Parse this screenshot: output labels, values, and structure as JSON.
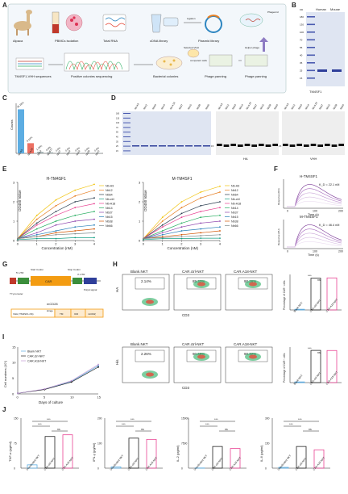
{
  "panels": {
    "A": "A",
    "B": "B",
    "C": "C",
    "D": "D",
    "E": "E",
    "F": "F",
    "G": "G",
    "H": "H",
    "I": "I",
    "J": "J"
  },
  "workflow": {
    "steps_top": [
      "Alpaca",
      "PBMCs isolation",
      "Total RNA",
      "cDNA library",
      "Plasmid library"
    ],
    "steps_bottom": [
      "TM4SF1-VHH sequences",
      "Positive colonies sequencing",
      "Bacterial colonies",
      "Phage panning",
      "Phage panning"
    ],
    "ligation": "Ligation",
    "phagemid": "Phagemid",
    "helper_phage": "Helper phage",
    "selected_vhh": "Selected VHH",
    "competent_cells": "competent cells",
    "antigen": "TM4SF1"
  },
  "gel_b": {
    "kd": "KD",
    "lanes": [
      "Human",
      "Mouse"
    ],
    "markers": [
      "180",
      "130",
      "100",
      "70",
      "55",
      "40",
      "35",
      "25",
      "15"
    ],
    "label": "TM4SF1"
  },
  "chart_data": [
    {
      "type": "bar",
      "panel": "C",
      "ylabel": "Counts",
      "categories": [
        "Nb-A9",
        "Nb-A18",
        "Nb14",
        "Nb-B12",
        "Nb37",
        "Nb64",
        "Nb66",
        "Nb38",
        "Nb15"
      ],
      "values": [
        35.19,
        8.14,
        1.29,
        0.9,
        0.4,
        0.4,
        0.4,
        0.4,
        0.4
      ],
      "data_labels": [
        "35.19%",
        "8.14%",
        "1.29%",
        "0.9%",
        "0.4%",
        "0.4%",
        "0.4%",
        "0.4%",
        "0.4%"
      ],
      "ylim": [
        0,
        40
      ]
    },
    {
      "type": "line",
      "panel": "E-left",
      "title": "H-TM4SF1",
      "xlabel": "Concentration (nM)",
      "ylabel": "OD450 Value",
      "x": [
        0,
        1,
        2,
        3,
        4
      ],
      "ylim": [
        0,
        3
      ],
      "series": [
        {
          "name": "Nb-A9",
          "values": [
            0.1,
            1.3,
            2.1,
            2.6,
            2.9
          ]
        },
        {
          "name": "Nb12",
          "values": [
            0.1,
            1.1,
            1.8,
            2.3,
            2.6
          ]
        },
        {
          "name": "Nb64",
          "values": [
            0.1,
            0.9,
            1.5,
            2.0,
            2.2
          ]
        },
        {
          "name": "Nb-ctrl",
          "values": [
            0.05,
            0.1,
            0.1,
            0.15,
            0.15
          ]
        },
        {
          "name": "Nb-A18",
          "values": [
            0.1,
            0.8,
            1.3,
            1.7,
            1.9
          ]
        },
        {
          "name": "Nb14",
          "values": [
            0.1,
            0.6,
            1.0,
            1.3,
            1.5
          ]
        },
        {
          "name": "Nb37",
          "values": [
            0.1,
            0.4,
            0.8,
            1.0,
            1.1
          ]
        },
        {
          "name": "Nb15",
          "values": [
            0.1,
            0.3,
            0.5,
            0.7,
            0.8
          ]
        },
        {
          "name": "Nb38",
          "values": [
            0.1,
            0.2,
            0.4,
            0.5,
            0.6
          ]
        },
        {
          "name": "Nb66",
          "values": [
            0.1,
            0.2,
            0.3,
            0.35,
            0.4
          ]
        }
      ]
    },
    {
      "type": "line",
      "panel": "E-right",
      "title": "M-TM4SF1",
      "xlabel": "Concentration (nM)",
      "ylabel": "OD450 Value",
      "x": [
        0,
        1,
        2,
        3,
        4
      ],
      "ylim": [
        0,
        3
      ],
      "series": [
        {
          "name": "Nb-A9",
          "values": [
            0.1,
            1.2,
            2.0,
            2.5,
            2.8
          ]
        },
        {
          "name": "Nb12",
          "values": [
            0.1,
            1.0,
            1.7,
            2.2,
            2.5
          ]
        },
        {
          "name": "Nb64",
          "values": [
            0.1,
            0.8,
            1.4,
            1.8,
            2.0
          ]
        },
        {
          "name": "Nb-ctrl",
          "values": [
            0.05,
            0.1,
            0.1,
            0.12,
            0.12
          ]
        },
        {
          "name": "Nb-A18",
          "values": [
            0.1,
            0.7,
            1.2,
            1.5,
            1.7
          ]
        },
        {
          "name": "Nb14",
          "values": [
            0.1,
            0.5,
            0.9,
            1.2,
            1.3
          ]
        },
        {
          "name": "Nb37",
          "values": [
            0.1,
            0.4,
            0.7,
            0.9,
            1.0
          ]
        },
        {
          "name": "Nb15",
          "values": [
            0.1,
            0.3,
            0.5,
            0.6,
            0.7
          ]
        },
        {
          "name": "Nb38",
          "values": [
            0.1,
            0.2,
            0.3,
            0.4,
            0.5
          ]
        },
        {
          "name": "Nb66",
          "values": [
            0.1,
            0.15,
            0.2,
            0.25,
            0.3
          ]
        }
      ]
    },
    {
      "type": "line",
      "panel": "I",
      "xlabel": "Days of culture",
      "ylabel": "Cell numbers (10⁷)",
      "x": [
        0,
        5,
        10,
        15
      ],
      "ylim": [
        0,
        15
      ],
      "series": [
        {
          "name": "Blank NKT",
          "values": [
            0.2,
            1.5,
            4.0,
            9.0
          ]
        },
        {
          "name": "CAR.ctrl-NKT",
          "values": [
            0.2,
            1.4,
            3.8,
            8.6
          ]
        },
        {
          "name": "CAR.A18-NKT",
          "values": [
            0.2,
            1.6,
            4.2,
            9.4
          ]
        }
      ]
    }
  ],
  "gel_d": {
    "lanes": [
      "Nb-A9",
      "Nb12",
      "Nb64",
      "Nb14",
      "Nb-A18",
      "Nb37",
      "Nb15",
      "Nb38",
      "Nb66"
    ],
    "markers": [
      "180",
      "130",
      "100",
      "70",
      "55",
      "40",
      "35",
      "25",
      "15"
    ],
    "wb1": "HA",
    "wb2": "VHH",
    "kd15": "15"
  },
  "binding": {
    "h_title": "H-TM4SF1",
    "h_kd": "K_D = 22.1 nM",
    "m_title": "M-TM4SF1",
    "m_kd": "K_D = 46.4 nM",
    "ylabel": "Response (RU)",
    "xlabel": "Time (s)",
    "ticks": [
      "0",
      "100",
      "200"
    ]
  },
  "construct": {
    "promoter": "T7-promoter",
    "utr5": "5'-UTR",
    "start": "Start Codon",
    "stop": "Stop Codon",
    "utr3": "3'-UTR",
    "car": "CAR",
    "polya": "PolyA signal",
    "costim": "mCD28",
    "hinge": "Hinge",
    "segments": [
      "VHH (TM4SF1-Nb)",
      "TM",
      "ICD",
      "mCD3ζ"
    ]
  },
  "flow": {
    "h_groups": [
      "Blank.NKT",
      "CAR.ctrl-NKT",
      "CAR.A18-NKT"
    ],
    "h_pct": [
      "2.14%",
      "89.33%",
      "90.26%"
    ],
    "i_groups": [
      "Blank.NKT",
      "CAR.ctrl-NKT",
      "CAR.A18-NKT"
    ],
    "i_pct": [
      "2.26%",
      "90.69%",
      "90.32%"
    ],
    "y1": "HA",
    "y2": "His",
    "x": "CD3",
    "bar_ylabel": "Percentage of CAR⁺ cells",
    "bar_groups": [
      "Blank-NKT",
      "CAR.ctrl-NKT",
      "CAR.A18-NKT"
    ],
    "sig": "***",
    "ns": "ns"
  },
  "cytokines": {
    "panels": [
      {
        "ylabel": "TNF-α (pg/ml)",
        "values": [
          10,
          95,
          100
        ],
        "ymax": 150
      },
      {
        "ylabel": "IFN-γ (pg/ml)",
        "values": [
          5,
          120,
          115
        ],
        "ymax": 200
      },
      {
        "ylabel": "IL-2 (pg/ml)",
        "values": [
          50,
          6500,
          5900
        ],
        "ymax": 15000
      },
      {
        "ylabel": "IL-6 (pg/ml)",
        "values": [
          5,
          130,
          110
        ],
        "ymax": 300
      }
    ],
    "groups": [
      "Unactivated NKT",
      "CAR.ctrl-NKT",
      "CAR.A18-NKT"
    ],
    "sig": "***",
    "ns": "ns"
  }
}
